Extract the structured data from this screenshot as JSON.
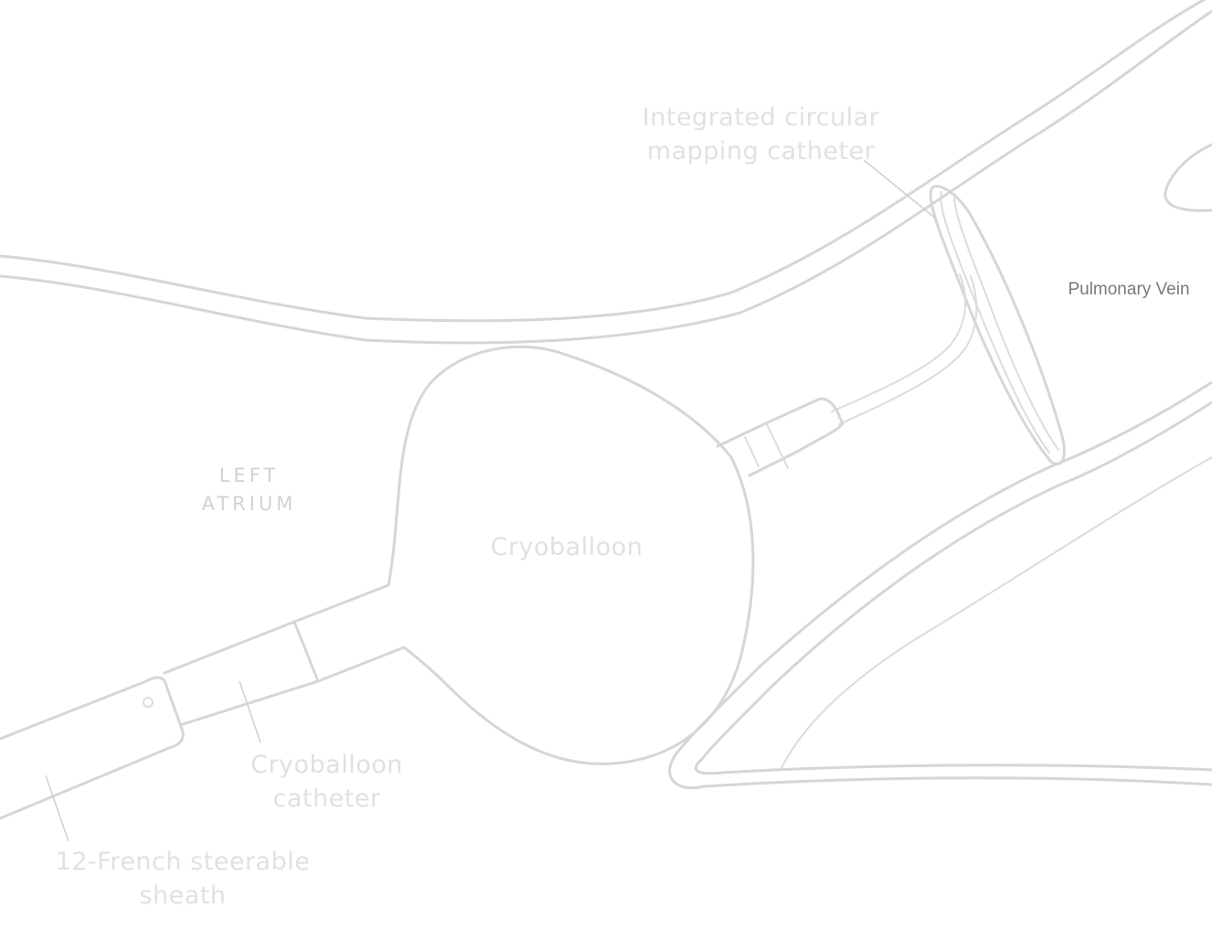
{
  "labels": {
    "mapping_catheter": [
      "Integrated circular",
      "mapping catheter"
    ],
    "pulmonary_vein": "Pulmonary Vein",
    "left_atrium": [
      "LEFT",
      "ATRIUM"
    ],
    "cryoballoon": "Cryoballoon",
    "cryoballoon_catheter": [
      "Cryoballoon",
      "catheter"
    ],
    "steerable_sheath": [
      "12-French steerable",
      "sheath"
    ]
  }
}
